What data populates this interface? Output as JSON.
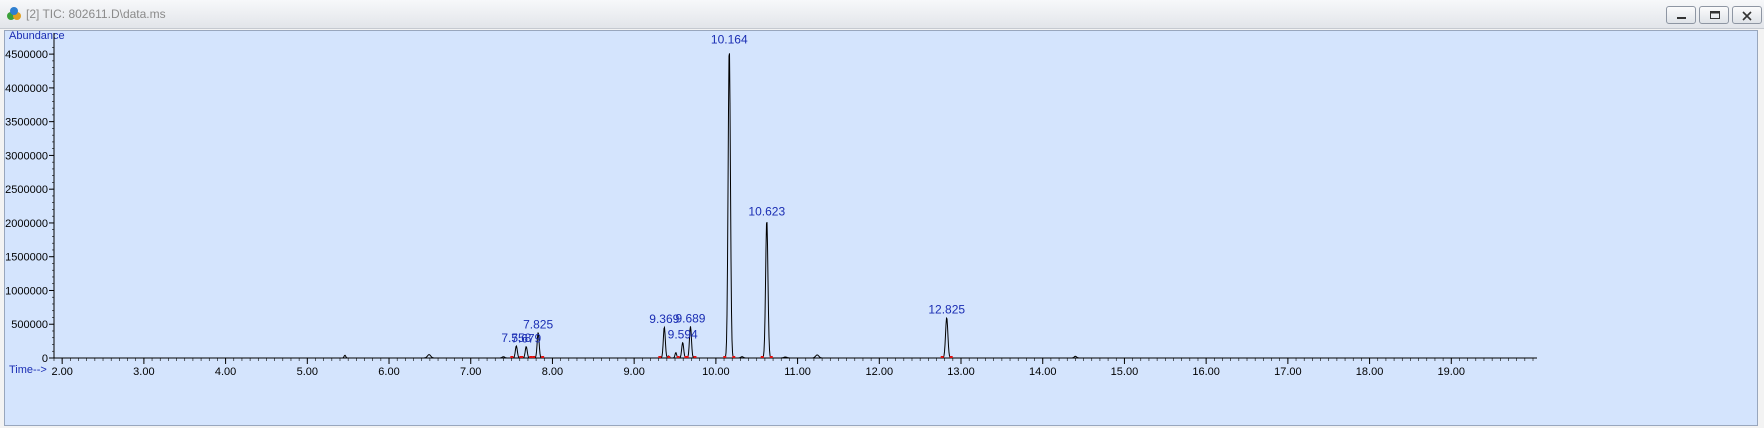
{
  "window": {
    "title": "[2] TIC: 802611.D\\data.ms",
    "icon": "chromatogram-app-icon",
    "buttons": [
      "minimize-icon",
      "restore-icon",
      "close-icon"
    ]
  },
  "chart_data": {
    "type": "line",
    "ylabel": "Abundance",
    "xlabel": "Time-->",
    "xlim": [
      1.9,
      20.0
    ],
    "ylim": [
      0,
      4650000
    ],
    "grid": false,
    "x_ticks": [
      2.0,
      3.0,
      4.0,
      5.0,
      6.0,
      7.0,
      8.0,
      9.0,
      10.0,
      11.0,
      12.0,
      13.0,
      14.0,
      15.0,
      16.0,
      17.0,
      18.0,
      19.0
    ],
    "x_tick_labels": [
      "2.00",
      "3.00",
      "4.00",
      "5.00",
      "6.00",
      "7.00",
      "8.00",
      "9.00",
      "10.00",
      "11.00",
      "12.00",
      "13.00",
      "14.00",
      "15.00",
      "16.00",
      "17.00",
      "18.00",
      "19.00"
    ],
    "y_ticks": [
      0,
      500000,
      1000000,
      1500000,
      2000000,
      2500000,
      3000000,
      3500000,
      4000000,
      4500000
    ],
    "y_tick_labels": [
      "0",
      "500000",
      "1000000",
      "1500000",
      "2000000",
      "2500000",
      "3000000",
      "3500000",
      "4000000",
      "4500000"
    ],
    "line_color": "#000000",
    "label_color": "#1a2db3",
    "marker_color": "#e01010",
    "peaks": [
      {
        "rt": 7.558,
        "height": 180000,
        "width": 0.012,
        "label": "7.558"
      },
      {
        "rt": 7.679,
        "height": 170000,
        "width": 0.012,
        "label": "7.679"
      },
      {
        "rt": 7.825,
        "height": 380000,
        "width": 0.012,
        "label": "7.825"
      },
      {
        "rt": 9.369,
        "height": 460000,
        "width": 0.012,
        "label": "9.369"
      },
      {
        "rt": 9.594,
        "height": 230000,
        "width": 0.012,
        "label": "9.594"
      },
      {
        "rt": 9.689,
        "height": 470000,
        "width": 0.012,
        "label": "9.689"
      },
      {
        "rt": 10.164,
        "height": 4600000,
        "width": 0.014,
        "label": "10.164"
      },
      {
        "rt": 10.623,
        "height": 2050000,
        "width": 0.014,
        "label": "10.623"
      },
      {
        "rt": 12.825,
        "height": 600000,
        "width": 0.014,
        "label": "12.825"
      }
    ],
    "minor_peaks": [
      {
        "rt": 5.46,
        "height": 40000,
        "width": 0.01
      },
      {
        "rt": 6.49,
        "height": 50000,
        "width": 0.02
      },
      {
        "rt": 7.4,
        "height": 20000,
        "width": 0.015
      },
      {
        "rt": 9.42,
        "height": 30000,
        "width": 0.01
      },
      {
        "rt": 9.51,
        "height": 80000,
        "width": 0.01
      },
      {
        "rt": 10.32,
        "height": 20000,
        "width": 0.015
      },
      {
        "rt": 10.85,
        "height": 15000,
        "width": 0.02
      },
      {
        "rt": 11.24,
        "height": 45000,
        "width": 0.02
      },
      {
        "rt": 14.4,
        "height": 25000,
        "width": 0.015
      }
    ]
  }
}
